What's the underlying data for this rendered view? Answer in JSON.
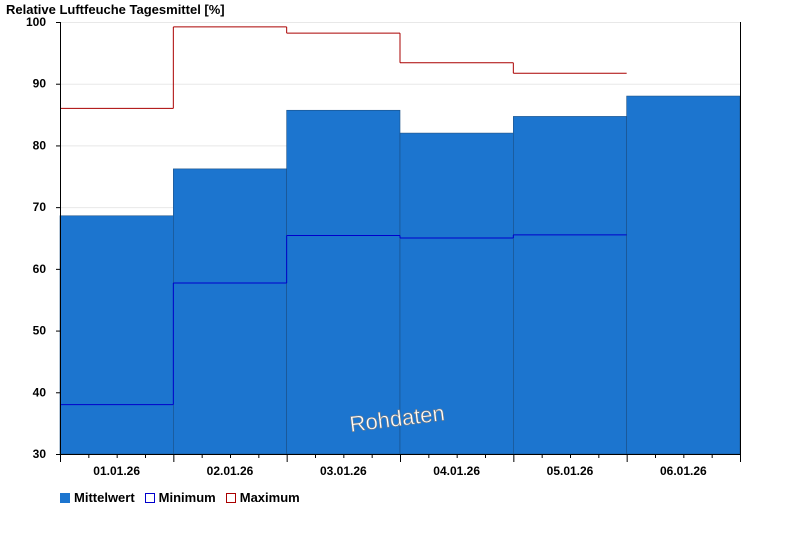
{
  "chart_data": {
    "type": "bar",
    "title": "Relative Luftfeuche Tagesmittel [%]",
    "categories": [
      "01.01.26",
      "02.01.26",
      "03.01.26",
      "04.01.26",
      "05.01.26",
      "06.01.26"
    ],
    "ylim": [
      30,
      100
    ],
    "yticks": [
      30,
      40,
      50,
      60,
      70,
      80,
      90,
      100
    ],
    "grid": true,
    "legend_position": "bottom-left",
    "series": [
      {
        "name": "Mittelwert",
        "color": "#1c75cf",
        "values": [
          68.6,
          76.2,
          85.7,
          82.0,
          84.7,
          88.0
        ]
      },
      {
        "name": "Minimum",
        "color": "#0000cc",
        "values": [
          38.0,
          57.7,
          65.4,
          65.0,
          65.5,
          null
        ]
      },
      {
        "name": "Maximum",
        "color": "#aa0000",
        "values": [
          86.0,
          99.2,
          98.2,
          93.4,
          91.7,
          null
        ]
      }
    ],
    "watermark": "Rohdaten"
  }
}
